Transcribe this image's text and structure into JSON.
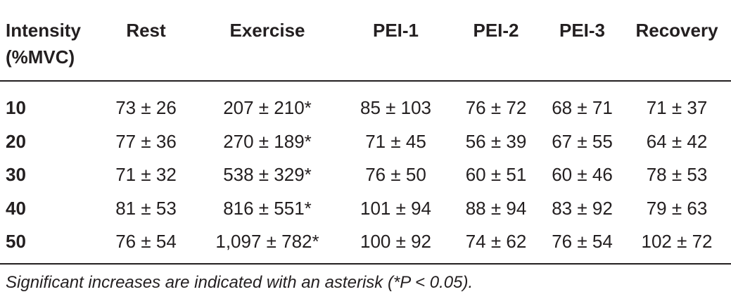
{
  "table": {
    "header": [
      "Intensity (%MVC)",
      "Rest",
      "Exercise",
      "PEI-1",
      "PEI-2",
      "PEI-3",
      "Recovery"
    ],
    "rows": [
      [
        "10",
        "73 ± 26",
        "207 ± 210*",
        "85 ± 103",
        "76 ± 72",
        "68 ± 71",
        "71 ± 37"
      ],
      [
        "20",
        "77 ± 36",
        "270 ± 189*",
        "71 ± 45",
        "56 ± 39",
        "67 ± 55",
        "64 ± 42"
      ],
      [
        "30",
        "71 ± 32",
        "538 ± 329*",
        "76 ± 50",
        "60 ± 51",
        "60 ± 46",
        "78 ± 53"
      ],
      [
        "40",
        "81 ± 53",
        "816 ± 551*",
        "101 ± 94",
        "88 ± 94",
        "83 ± 92",
        "79 ± 63"
      ],
      [
        "50",
        "76 ± 54",
        "1,097 ± 782*",
        "100 ± 92",
        "74 ± 62",
        "76 ± 54",
        "102 ± 72"
      ]
    ]
  },
  "footnote": "Significant increases are indicated with an asterisk (*P < 0.05)."
}
